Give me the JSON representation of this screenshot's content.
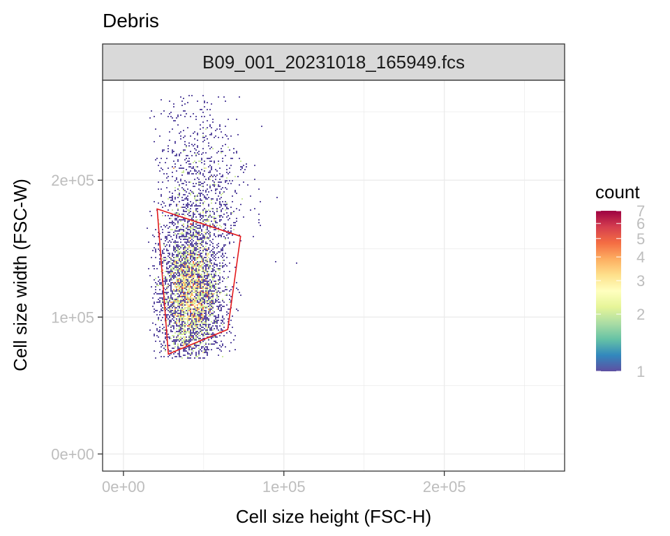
{
  "chart_data": {
    "type": "heatmap",
    "title": "Debris",
    "facet_label": "B09_001_20231018_165949.fcs",
    "xlabel": "Cell size height (FSC-H)",
    "ylabel": "Cell size width (FSC-W)",
    "xlim": [
      -13000,
      275000
    ],
    "ylim": [
      -12500,
      273000
    ],
    "x_ticks": [
      {
        "value": 0,
        "label": "0e+00"
      },
      {
        "value": 100000,
        "label": "1e+05"
      },
      {
        "value": 200000,
        "label": "2e+05"
      }
    ],
    "y_ticks": [
      {
        "value": 0,
        "label": "0e+00"
      },
      {
        "value": 100000,
        "label": "1e+05"
      },
      {
        "value": 200000,
        "label": "2e+05"
      }
    ],
    "grid": true,
    "legend": {
      "title": "count",
      "position": "right",
      "scale": "log",
      "range": [
        1,
        7
      ],
      "ticks": [
        {
          "value": 1,
          "label": "1"
        },
        {
          "value": 2,
          "label": "2"
        },
        {
          "value": 3,
          "label": "3"
        },
        {
          "value": 4,
          "label": "4"
        },
        {
          "value": 5,
          "label": "5"
        },
        {
          "value": 6,
          "label": "6"
        },
        {
          "value": 7,
          "label": "7"
        }
      ],
      "palette": [
        "#5e4fa2",
        "#3288bd",
        "#66c2a5",
        "#abdda4",
        "#e6f598",
        "#ffffbf",
        "#fee08b",
        "#fdae61",
        "#f46d43",
        "#d53e4f",
        "#9e0142"
      ]
    },
    "distribution": {
      "center": [
        42000,
        118000
      ],
      "spread": [
        10000,
        27000
      ],
      "x_range": [
        15000,
        108000
      ],
      "y_range": [
        70000,
        262000
      ]
    },
    "gate": {
      "color": "#e31a1c",
      "vertices": [
        [
          21000,
          179000
        ],
        [
          73000,
          159000
        ],
        [
          65000,
          91000
        ],
        [
          28000,
          73000
        ]
      ]
    }
  }
}
